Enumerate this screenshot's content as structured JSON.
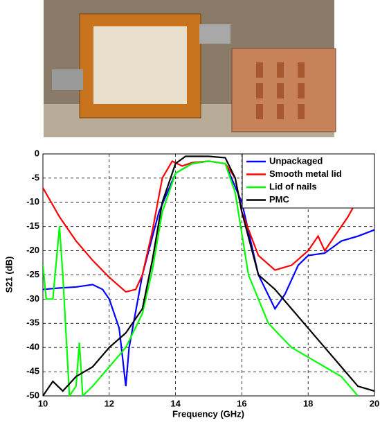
{
  "chart_data": {
    "type": "line",
    "xlabel": "Frequency (GHz)",
    "ylabel": "S21 (dB)",
    "xlim": [
      10,
      20
    ],
    "ylim": [
      -50,
      0
    ],
    "xticks": [
      10,
      12,
      14,
      16,
      18,
      20
    ],
    "yticks": [
      0,
      -5,
      -10,
      -15,
      -20,
      -25,
      -30,
      -35,
      -40,
      -45,
      -50
    ],
    "grid": true,
    "legend": "upper right",
    "series": [
      {
        "name": "Unpackaged",
        "color": "#0000ff",
        "x": [
          10,
          10.5,
          11,
          11.5,
          11.8,
          12,
          12.3,
          12.5,
          12.6,
          13,
          13.5,
          14,
          14.5,
          15,
          15.5,
          16,
          16.5,
          17,
          17.3,
          17.7,
          18,
          18.5,
          19,
          19.5,
          20
        ],
        "values": [
          -28,
          -27.7,
          -27.5,
          -27,
          -28,
          -30,
          -36,
          -48,
          -40,
          -25,
          -12,
          -4,
          -2,
          -1.5,
          -2,
          -10,
          -25,
          -32,
          -29,
          -23,
          -21,
          -20.5,
          -18,
          -17,
          -15.7
        ]
      },
      {
        "name": "Smooth metal lid",
        "color": "#ff0000",
        "x": [
          10,
          10.5,
          11,
          11.5,
          12,
          12.5,
          12.8,
          13,
          13.3,
          13.6,
          13.9,
          14.2,
          14.5,
          15,
          15.5,
          15.8,
          16,
          16.5,
          17,
          17.5,
          18,
          18.3,
          18.5,
          18.8,
          19.2,
          19.6,
          20
        ],
        "values": [
          -7,
          -13,
          -18,
          -22,
          -25.5,
          -28.5,
          -28,
          -25,
          -16,
          -5,
          -1.5,
          -2.5,
          -1.8,
          -1.5,
          -2,
          -5,
          -12,
          -21,
          -24,
          -23,
          -20,
          -17,
          -20,
          -17,
          -13,
          -8,
          -2
        ]
      },
      {
        "name": "Lid of nails",
        "color": "#00ff00",
        "x": [
          10,
          10.1,
          10.3,
          10.5,
          10.6,
          10.8,
          11,
          11.1,
          11.2,
          11.5,
          12,
          12.5,
          13,
          13.3,
          13.6,
          14,
          14.5,
          15,
          15.5,
          15.8,
          16.2,
          16.8,
          17.5,
          18,
          18.5,
          19,
          19.5
        ],
        "values": [
          -23,
          -30,
          -30,
          -15,
          -25,
          -50,
          -48,
          -39,
          -50,
          -48,
          -44,
          -40,
          -33,
          -24,
          -12,
          -4,
          -2,
          -1.5,
          -2,
          -8,
          -25,
          -35,
          -40,
          -42,
          -44,
          -46,
          -50
        ]
      },
      {
        "name": "PMC",
        "color": "#000000",
        "x": [
          10,
          10.3,
          10.6,
          11,
          11.5,
          12,
          12.5,
          12.8,
          13,
          13.3,
          13.6,
          14,
          14.3,
          15,
          15.5,
          15.8,
          16,
          16.5,
          17,
          17.5,
          18,
          18.5,
          19,
          19.5,
          20
        ],
        "values": [
          -50,
          -47,
          -49,
          -46,
          -44,
          -40,
          -37,
          -34,
          -32,
          -22,
          -10,
          -2,
          -0.5,
          -0.5,
          -0.8,
          -5,
          -12,
          -25,
          -28,
          -32,
          -36,
          -40,
          -44,
          -48,
          -49
        ]
      }
    ]
  }
}
